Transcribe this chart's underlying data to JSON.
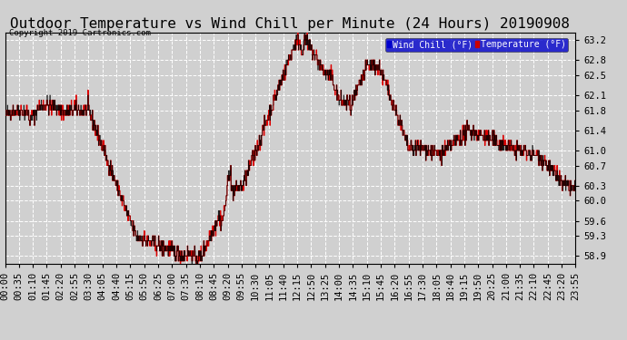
{
  "title": "Outdoor Temperature vs Wind Chill per Minute (24 Hours) 20190908",
  "copyright": "Copyright 2019 Cartronics.com",
  "legend_wind_chill": "Wind Chill (°F)",
  "legend_temperature": "Temperature (°F)",
  "ylim_min": 58.75,
  "ylim_max": 63.35,
  "yticks": [
    58.9,
    59.3,
    59.6,
    60.0,
    60.3,
    60.7,
    61.0,
    61.4,
    61.8,
    62.1,
    62.5,
    62.8,
    63.2
  ],
  "background_color": "#d0d0d0",
  "plot_bg_color": "#d0d0d0",
  "line_color_red": "#dd0000",
  "line_color_black": "#000000",
  "grid_color": "#ffffff",
  "title_fontsize": 11.5,
  "tick_fontsize": 7.5,
  "x_tick_labels": [
    "00:00",
    "00:35",
    "01:10",
    "01:45",
    "02:20",
    "02:55",
    "03:30",
    "04:05",
    "04:40",
    "05:15",
    "05:50",
    "06:25",
    "07:00",
    "07:35",
    "08:10",
    "08:45",
    "09:20",
    "09:55",
    "10:30",
    "11:05",
    "11:40",
    "12:15",
    "12:50",
    "13:25",
    "14:00",
    "14:35",
    "15:10",
    "15:45",
    "16:20",
    "16:55",
    "17:30",
    "18:05",
    "18:40",
    "19:15",
    "19:50",
    "20:25",
    "21:00",
    "21:35",
    "22:10",
    "22:45",
    "23:20",
    "23:55"
  ],
  "n_points": 1440,
  "seed": 42
}
